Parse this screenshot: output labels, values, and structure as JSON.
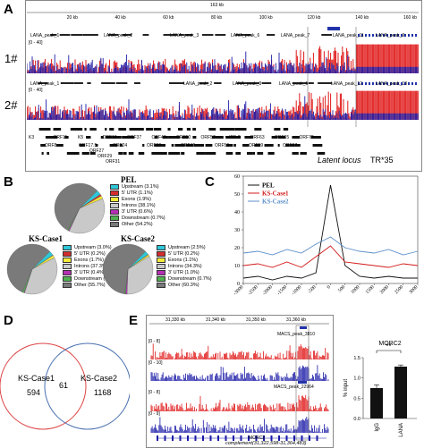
{
  "panels": {
    "A": "A",
    "B": "B",
    "C": "C",
    "D": "D",
    "E": "E"
  },
  "panelA": {
    "genome_length": "163 kb",
    "ticks": [
      "20 kb",
      "40 kb",
      "60 kb",
      "80 kb",
      "100 kb",
      "120 kb",
      "140 kb",
      "160 kb"
    ],
    "range1": "[0 - 40]",
    "range2": "[0 - 40]",
    "track1_label": "1#",
    "track2_label": "2#",
    "peaks1": [
      "LANA_peak_1",
      "LANA_peak_2",
      "LANA_peak_3",
      "LANA_peak_6",
      "LANA_peak_7",
      "LANA_peak_11",
      "LANA_peak_9"
    ],
    "peaks2": [
      "LANA_peak_1",
      "LANA_peak_2",
      "LANA_peak_3",
      "LANA_peak_5",
      "LANA_peak_12",
      "LANA_peak_13"
    ],
    "orf_row1": [
      "K3",
      "ORF11",
      "K5",
      "ORF19",
      "ORF37",
      "ORF43",
      "ORF50",
      "ORF57",
      "v-IRF-2",
      "ORF63",
      "ORF65",
      "ORF72"
    ],
    "orf_row2": [
      "ORF8",
      "ORF17.5",
      "ORF24",
      "ORF30",
      "ORF46",
      "ORF56",
      "ORF59",
      "ORF67"
    ],
    "orf_row3": [
      "ORF27",
      "ORF29",
      "ORF31"
    ],
    "latent_locus": "Latent locus",
    "tr": "TR*35"
  },
  "panelB": {
    "pel_title": "PEL",
    "pel_legend": [
      "Upstream (3.1%)",
      "5' UTR (1.1%)",
      "Exons (1.9%)",
      "Introns (38.1%)",
      "3' UTR (0.6%)",
      "Downstream (0.7%)",
      "Other (54.2%)"
    ],
    "case1_title": "KS-Case1",
    "case1_legend": [
      "Upstream (3.0%)",
      "5' UTR (0.2%)",
      "Exons (1.7%)",
      "Introns (37.3%)",
      "3' UTR (0.4%)",
      "Downstream (1.0%)",
      "Other (55.7%)"
    ],
    "case2_title": "KS-Case2",
    "case2_legend": [
      "Upstream (2.5%)",
      "5' UTR (0.2%)",
      "Exons (1.1%)",
      "Introns (34.3%)",
      "3' UTR (1.0%)",
      "Downstream (0.7%)",
      "Other (60.3%)"
    ],
    "colors": [
      "#2ec6d8",
      "#d42d2d",
      "#f5ea3a",
      "#c9c9c9",
      "#b52fb5",
      "#4fb24f",
      "#7a7a7a"
    ]
  },
  "chart_data": [
    {
      "type": "line",
      "panel": "C",
      "x": [
        -3000,
        -2500,
        -2000,
        -1500,
        -1000,
        -500,
        0,
        500,
        1000,
        1500,
        2000,
        2500,
        3000
      ],
      "xticks": [
        "-3000",
        "-2500",
        "-2000",
        "-1500",
        "-1000",
        "-500",
        "0",
        "500",
        "1000",
        "1500",
        "2000",
        "2500",
        "3000"
      ],
      "ylim": [
        0,
        60
      ],
      "yticks": [
        "0",
        "10",
        "20",
        "30",
        "40",
        "50",
        "60"
      ],
      "series": [
        {
          "name": "PEL",
          "color": "#111111",
          "values": [
            3,
            4,
            2,
            4,
            3,
            6,
            55,
            10,
            4,
            3,
            4,
            3,
            3
          ]
        },
        {
          "name": "KS-Case1",
          "color": "#d11a1a",
          "values": [
            10,
            11,
            9,
            12,
            9,
            15,
            21,
            12,
            11,
            10,
            9,
            11,
            10
          ]
        },
        {
          "name": "KS-Case2",
          "color": "#5c8fc9",
          "values": [
            17,
            18,
            16,
            19,
            17,
            22,
            26,
            20,
            18,
            17,
            19,
            16,
            18
          ]
        }
      ]
    },
    {
      "type": "bar",
      "panel": "E",
      "title": "MORC2",
      "categories": [
        "IgG",
        "LANA"
      ],
      "values": [
        0.75,
        1.28
      ],
      "errors": [
        0.08,
        0.04
      ],
      "ylabel": "% input",
      "ylim": [
        0,
        1.5
      ],
      "yticks": [
        "0.0",
        "0.5",
        "1.0",
        "1.5"
      ],
      "significance": "**"
    }
  ],
  "panelD": {
    "left_label": "KS-Case1",
    "left_count": "594",
    "overlap_count": "61",
    "right_label": "KS-Case2",
    "right_count": "1168"
  },
  "panelE": {
    "ticks": [
      "31,330 kb",
      "31,340 kb",
      "31,350 kb",
      "31,360 kb"
    ],
    "r1": "[0 - 8]",
    "r2": "[0 - 10]",
    "r3": "[0 - 8]",
    "r4": "[0 - 9]",
    "peak1": "MACS_peak_3810",
    "peak2": "MACS_peak_22964",
    "gene": "MORC2",
    "coords": "complement(31,322,598-31,364,483)"
  }
}
